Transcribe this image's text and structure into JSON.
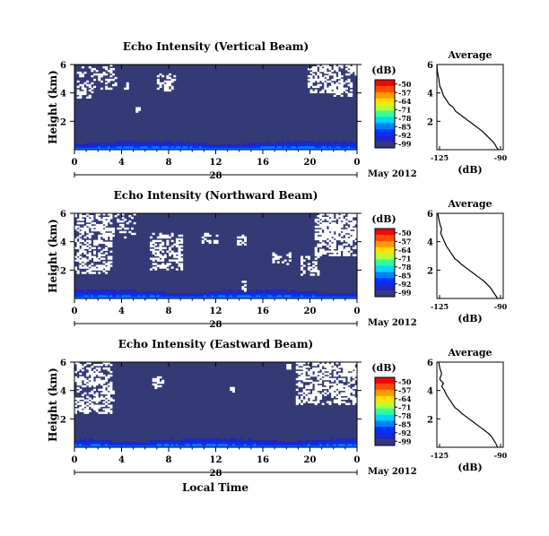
{
  "figure": {
    "xlabel": "Local Time",
    "day_label": "28",
    "month_label": "May 2012"
  },
  "colorbar": {
    "title": "(dB)",
    "ticks": [
      "-50",
      "-57",
      "-64",
      "-71",
      "-78",
      "-85",
      "-92",
      "-99"
    ],
    "colors": [
      "#ff0000",
      "#ff4a00",
      "#ff9900",
      "#ffe000",
      "#b4ff3c",
      "#2fff9f",
      "#00d6ff",
      "#0080ff",
      "#0030ff",
      "#1f25c7",
      "#333a75"
    ]
  },
  "chart_data": [
    {
      "type": "heatmap",
      "title": "Echo Intensity (Vertical Beam)",
      "ylabel": "Height (km)",
      "x_ticks": [
        "0",
        "4",
        "8",
        "12",
        "16",
        "20",
        "0"
      ],
      "y_ticks": [
        "6",
        "4",
        "2"
      ],
      "xlim": [
        0,
        24
      ],
      "ylim": [
        0,
        6
      ],
      "value_range_db": [
        -99,
        -50
      ],
      "background_level_db": -97,
      "near_surface_band": {
        "height_km": [
          0,
          0.6
        ],
        "level_db": [
          -92,
          -85
        ]
      }
    },
    {
      "type": "line",
      "title": "Average",
      "xlabel": "(dB)",
      "x_ticks": [
        "-125",
        "-90"
      ],
      "y_ticks": [
        "6",
        "4",
        "2"
      ],
      "xlim": [
        -125,
        -90
      ],
      "ylim": [
        0,
        6
      ],
      "x": [
        -125.0,
        -124.7,
        -124.0,
        -123.5,
        -122.5,
        -121.5,
        -120.0,
        -118.5,
        -116.5,
        -115.0,
        -113.0,
        -111.0,
        -109.0,
        -107.0,
        -105.0,
        -103.0,
        -101.0,
        -99.5,
        -98.0,
        -96.5,
        -95.0,
        -94.0,
        -93.5,
        -92.5
      ],
      "y": [
        6.0,
        5.5,
        5.0,
        4.5,
        4.2,
        3.8,
        3.5,
        3.2,
        3.0,
        2.7,
        2.5,
        2.3,
        2.1,
        1.9,
        1.7,
        1.5,
        1.3,
        1.1,
        0.9,
        0.7,
        0.5,
        0.3,
        0.15,
        0.0
      ]
    },
    {
      "type": "heatmap",
      "title": "Echo Intensity (Northward Beam)",
      "ylabel": "Height (km)",
      "x_ticks": [
        "0",
        "4",
        "8",
        "12",
        "16",
        "20",
        "0"
      ],
      "y_ticks": [
        "6",
        "4",
        "2"
      ],
      "xlim": [
        0,
        24
      ],
      "ylim": [
        0,
        6
      ],
      "value_range_db": [
        -99,
        -50
      ],
      "background_level_db": -97,
      "near_surface_band": {
        "height_km": [
          0,
          0.6
        ],
        "level_db": [
          -92,
          -85
        ]
      }
    },
    {
      "type": "line",
      "title": "Average",
      "xlabel": "(dB)",
      "x_ticks": [
        "-125",
        "-90"
      ],
      "y_ticks": [
        "6",
        "4",
        "2"
      ],
      "xlim": [
        -125,
        -90
      ],
      "ylim": [
        0,
        6
      ],
      "x": [
        -124.5,
        -124.0,
        -123.3,
        -122.5,
        -123.0,
        -122.0,
        -121.0,
        -120.0,
        -118.5,
        -117.0,
        -115.5,
        -113.5,
        -112.0,
        -110.0,
        -108.0,
        -106.0,
        -104.0,
        -102.0,
        -100.0,
        -98.5,
        -97.0,
        -95.5,
        -94.5,
        -93.0
      ],
      "y": [
        6.0,
        5.6,
        5.2,
        4.9,
        4.6,
        4.3,
        4.0,
        3.7,
        3.4,
        3.1,
        2.8,
        2.6,
        2.4,
        2.2,
        2.0,
        1.8,
        1.6,
        1.4,
        1.2,
        1.0,
        0.8,
        0.5,
        0.3,
        0.0
      ]
    },
    {
      "type": "heatmap",
      "title": "Echo Intensity (Eastward Beam)",
      "ylabel": "Height (km)",
      "x_ticks": [
        "0",
        "4",
        "8",
        "12",
        "16",
        "20",
        "0"
      ],
      "y_ticks": [
        "6",
        "4",
        "2"
      ],
      "xlim": [
        0,
        24
      ],
      "ylim": [
        0,
        6
      ],
      "value_range_db": [
        -99,
        -50
      ],
      "background_level_db": -97,
      "near_surface_band": {
        "height_km": [
          0,
          0.6
        ],
        "level_db": [
          -92,
          -85
        ]
      }
    },
    {
      "type": "line",
      "title": "Average",
      "xlabel": "(dB)",
      "x_ticks": [
        "-125",
        "-90"
      ],
      "y_ticks": [
        "6",
        "4",
        "2"
      ],
      "xlim": [
        -125,
        -90
      ],
      "ylim": [
        0,
        6
      ],
      "x": [
        -124.0,
        -123.5,
        -122.5,
        -123.5,
        -121.5,
        -122.5,
        -121.0,
        -120.0,
        -118.5,
        -117.0,
        -115.5,
        -113.5,
        -112.0,
        -110.0,
        -108.0,
        -106.0,
        -104.0,
        -102.0,
        -100.0,
        -98.0,
        -96.5,
        -95.0,
        -94.0,
        -93.0
      ],
      "y": [
        6.0,
        5.6,
        5.2,
        4.8,
        4.5,
        4.3,
        4.0,
        3.7,
        3.4,
        3.1,
        2.8,
        2.6,
        2.4,
        2.2,
        2.0,
        1.8,
        1.6,
        1.4,
        1.2,
        1.0,
        0.8,
        0.5,
        0.3,
        0.0
      ]
    }
  ]
}
